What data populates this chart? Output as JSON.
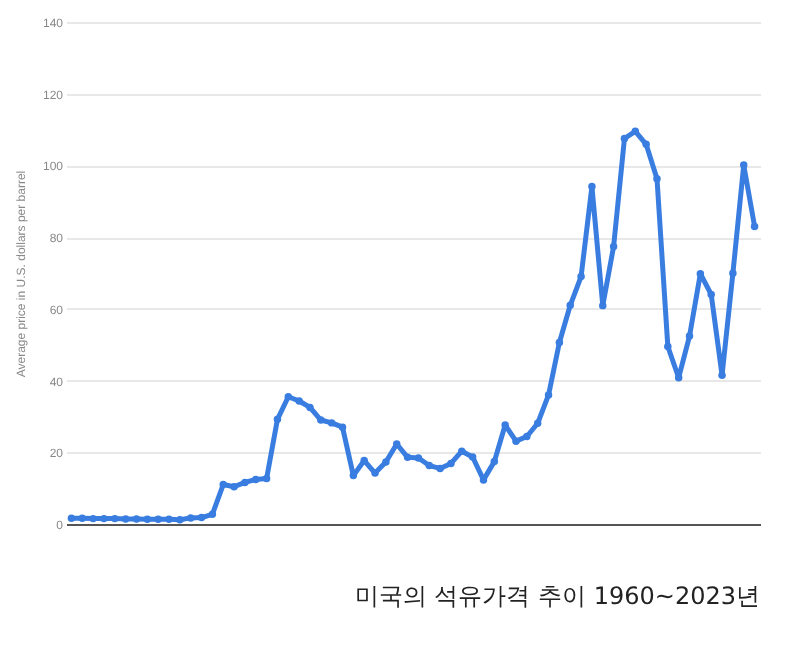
{
  "chart_data": {
    "type": "line",
    "title": "미국의 석유가격 추이 1960~2023년",
    "ylabel": "Average price in U.S. dollars per barrel",
    "categories": [
      null,
      null,
      null,
      null,
      null,
      null,
      null,
      null,
      null,
      null,
      null,
      null,
      null,
      null,
      null,
      null,
      null,
      null,
      null,
      null,
      null,
      null,
      null,
      null,
      null,
      null,
      null,
      null,
      null,
      null,
      null,
      null,
      null,
      null,
      null,
      null,
      null,
      null,
      null,
      null,
      null,
      null,
      null,
      null,
      null,
      null,
      null,
      null,
      null,
      null,
      null,
      null,
      null,
      null,
      null,
      null,
      null,
      null,
      null,
      null,
      null,
      null,
      null,
      null
    ],
    "series": [
      {
        "color": "#3a7de0",
        "values": [
          1.6,
          1.6,
          1.5,
          1.5,
          1.5,
          1.4,
          1.4,
          1.3,
          1.3,
          1.3,
          1.2,
          1.7,
          1.8,
          2.7,
          11,
          10.4,
          11.6,
          12.4,
          12.7,
          29.2,
          35.5,
          34.3,
          32.5,
          29,
          28.2,
          27,
          13.5,
          17.7,
          14.2,
          17.3,
          22.3,
          18.6,
          18.4,
          16.3,
          15.5,
          16.9,
          20.3,
          18.7,
          12.3,
          17.4,
          27.6,
          23.1,
          24.4,
          28.1,
          36,
          50.6,
          61,
          69,
          94.1,
          60.9,
          77.4,
          107.5,
          109.5,
          105.9,
          96.3,
          49.5,
          40.8,
          52.4,
          69.8,
          64,
          41.5,
          69.9,
          100.1,
          83
        ]
      }
    ],
    "ylim": [
      0,
      140
    ],
    "yticks": [
      0,
      20,
      40,
      60,
      80,
      100,
      120,
      140
    ],
    "grid": "y",
    "marker": "circle",
    "line_style": "solid",
    "tick_labels": "y"
  }
}
